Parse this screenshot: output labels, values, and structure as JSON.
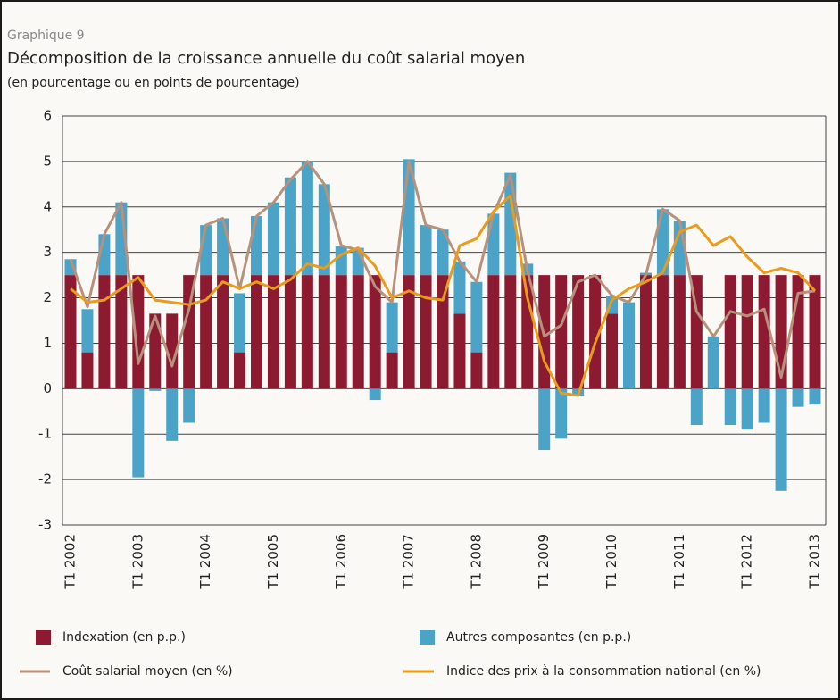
{
  "chart_data": {
    "type": "bar",
    "label": "Graphique 9",
    "title": "Décomposition de la croissance annuelle du coût salarial moyen",
    "subtitle": "(en pourcentage ou en points de pourcentage)",
    "categories": [
      "T1 2002",
      null,
      null,
      null,
      "T1 2003",
      null,
      null,
      null,
      "T1 2004",
      null,
      null,
      null,
      "T1 2005",
      null,
      null,
      null,
      "T1 2006",
      null,
      null,
      null,
      "T1 2007",
      null,
      null,
      null,
      "T1 2008",
      null,
      null,
      null,
      "T1 2009",
      null,
      null,
      null,
      "T1 2010",
      null,
      null,
      null,
      "T1 2011",
      null,
      null,
      null,
      "T1 2012",
      null,
      null,
      null,
      "T1 2013"
    ],
    "series": [
      {
        "name": "Indexation (en p.p.)",
        "type": "bar",
        "color": "#8c1a30",
        "values": [
          2.5,
          0.8,
          2.5,
          2.5,
          2.5,
          1.65,
          1.65,
          2.5,
          2.5,
          2.5,
          0.8,
          2.5,
          2.5,
          2.5,
          2.5,
          2.5,
          2.5,
          2.5,
          2.5,
          0.8,
          2.5,
          2.5,
          2.5,
          1.65,
          0.8,
          2.5,
          2.5,
          2.5,
          2.5,
          2.5,
          2.5,
          2.5,
          1.65,
          0,
          2.5,
          2.5,
          2.5,
          2.5,
          0,
          2.5,
          2.5,
          2.5,
          2.5,
          2.5,
          2.5
        ]
      },
      {
        "name": "Autres composantes (en p.p.)",
        "type": "bar",
        "color": "#4ba4c8",
        "values": [
          0.35,
          0.95,
          0.9,
          1.6,
          -1.95,
          -0.05,
          -1.15,
          -0.75,
          1.1,
          1.25,
          1.3,
          1.3,
          1.6,
          2.15,
          2.5,
          2.0,
          0.65,
          0.6,
          -0.25,
          1.1,
          2.55,
          1.1,
          1.0,
          1.15,
          1.55,
          1.35,
          2.25,
          0.25,
          -1.35,
          -1.1,
          -0.15,
          0,
          0.4,
          1.9,
          0.05,
          1.45,
          1.2,
          -0.8,
          1.15,
          -0.8,
          -0.9,
          -0.75,
          -2.25,
          -0.4,
          -0.35
        ]
      },
      {
        "name": "Coût salarial moyen (en %)",
        "type": "line",
        "color": "#b8917c",
        "values": [
          2.85,
          1.8,
          3.4,
          4.1,
          0.55,
          1.6,
          0.5,
          1.75,
          3.6,
          3.75,
          2.2,
          3.8,
          4.1,
          4.6,
          5.0,
          4.5,
          3.15,
          3.05,
          2.25,
          1.9,
          5.0,
          3.6,
          3.5,
          2.8,
          2.35,
          3.85,
          4.7,
          2.6,
          1.15,
          1.4,
          2.35,
          2.5,
          2.05,
          1.9,
          2.5,
          3.95,
          3.7,
          1.7,
          1.15,
          1.7,
          1.6,
          1.75,
          0.25,
          2.1,
          2.15
        ]
      },
      {
        "name": "Indice des prix à la consommation national (en %)",
        "type": "line",
        "color": "#e99b1c",
        "values": [
          2.2,
          1.9,
          1.95,
          2.2,
          2.45,
          1.95,
          1.9,
          1.85,
          1.95,
          2.35,
          2.2,
          2.35,
          2.2,
          2.4,
          2.75,
          2.65,
          2.95,
          3.1,
          2.7,
          2.0,
          2.15,
          2.0,
          1.95,
          3.15,
          3.3,
          3.9,
          4.25,
          2.0,
          0.6,
          -0.1,
          -0.15,
          1.0,
          1.95,
          2.2,
          2.35,
          2.55,
          3.45,
          3.6,
          3.15,
          3.35,
          2.9,
          2.55,
          2.65,
          2.55,
          2.15
        ]
      }
    ],
    "ylim": [
      -3,
      6
    ],
    "yticks": [
      -3,
      -2,
      -1,
      0,
      1,
      2,
      3,
      4,
      5,
      6
    ],
    "grid": true
  }
}
